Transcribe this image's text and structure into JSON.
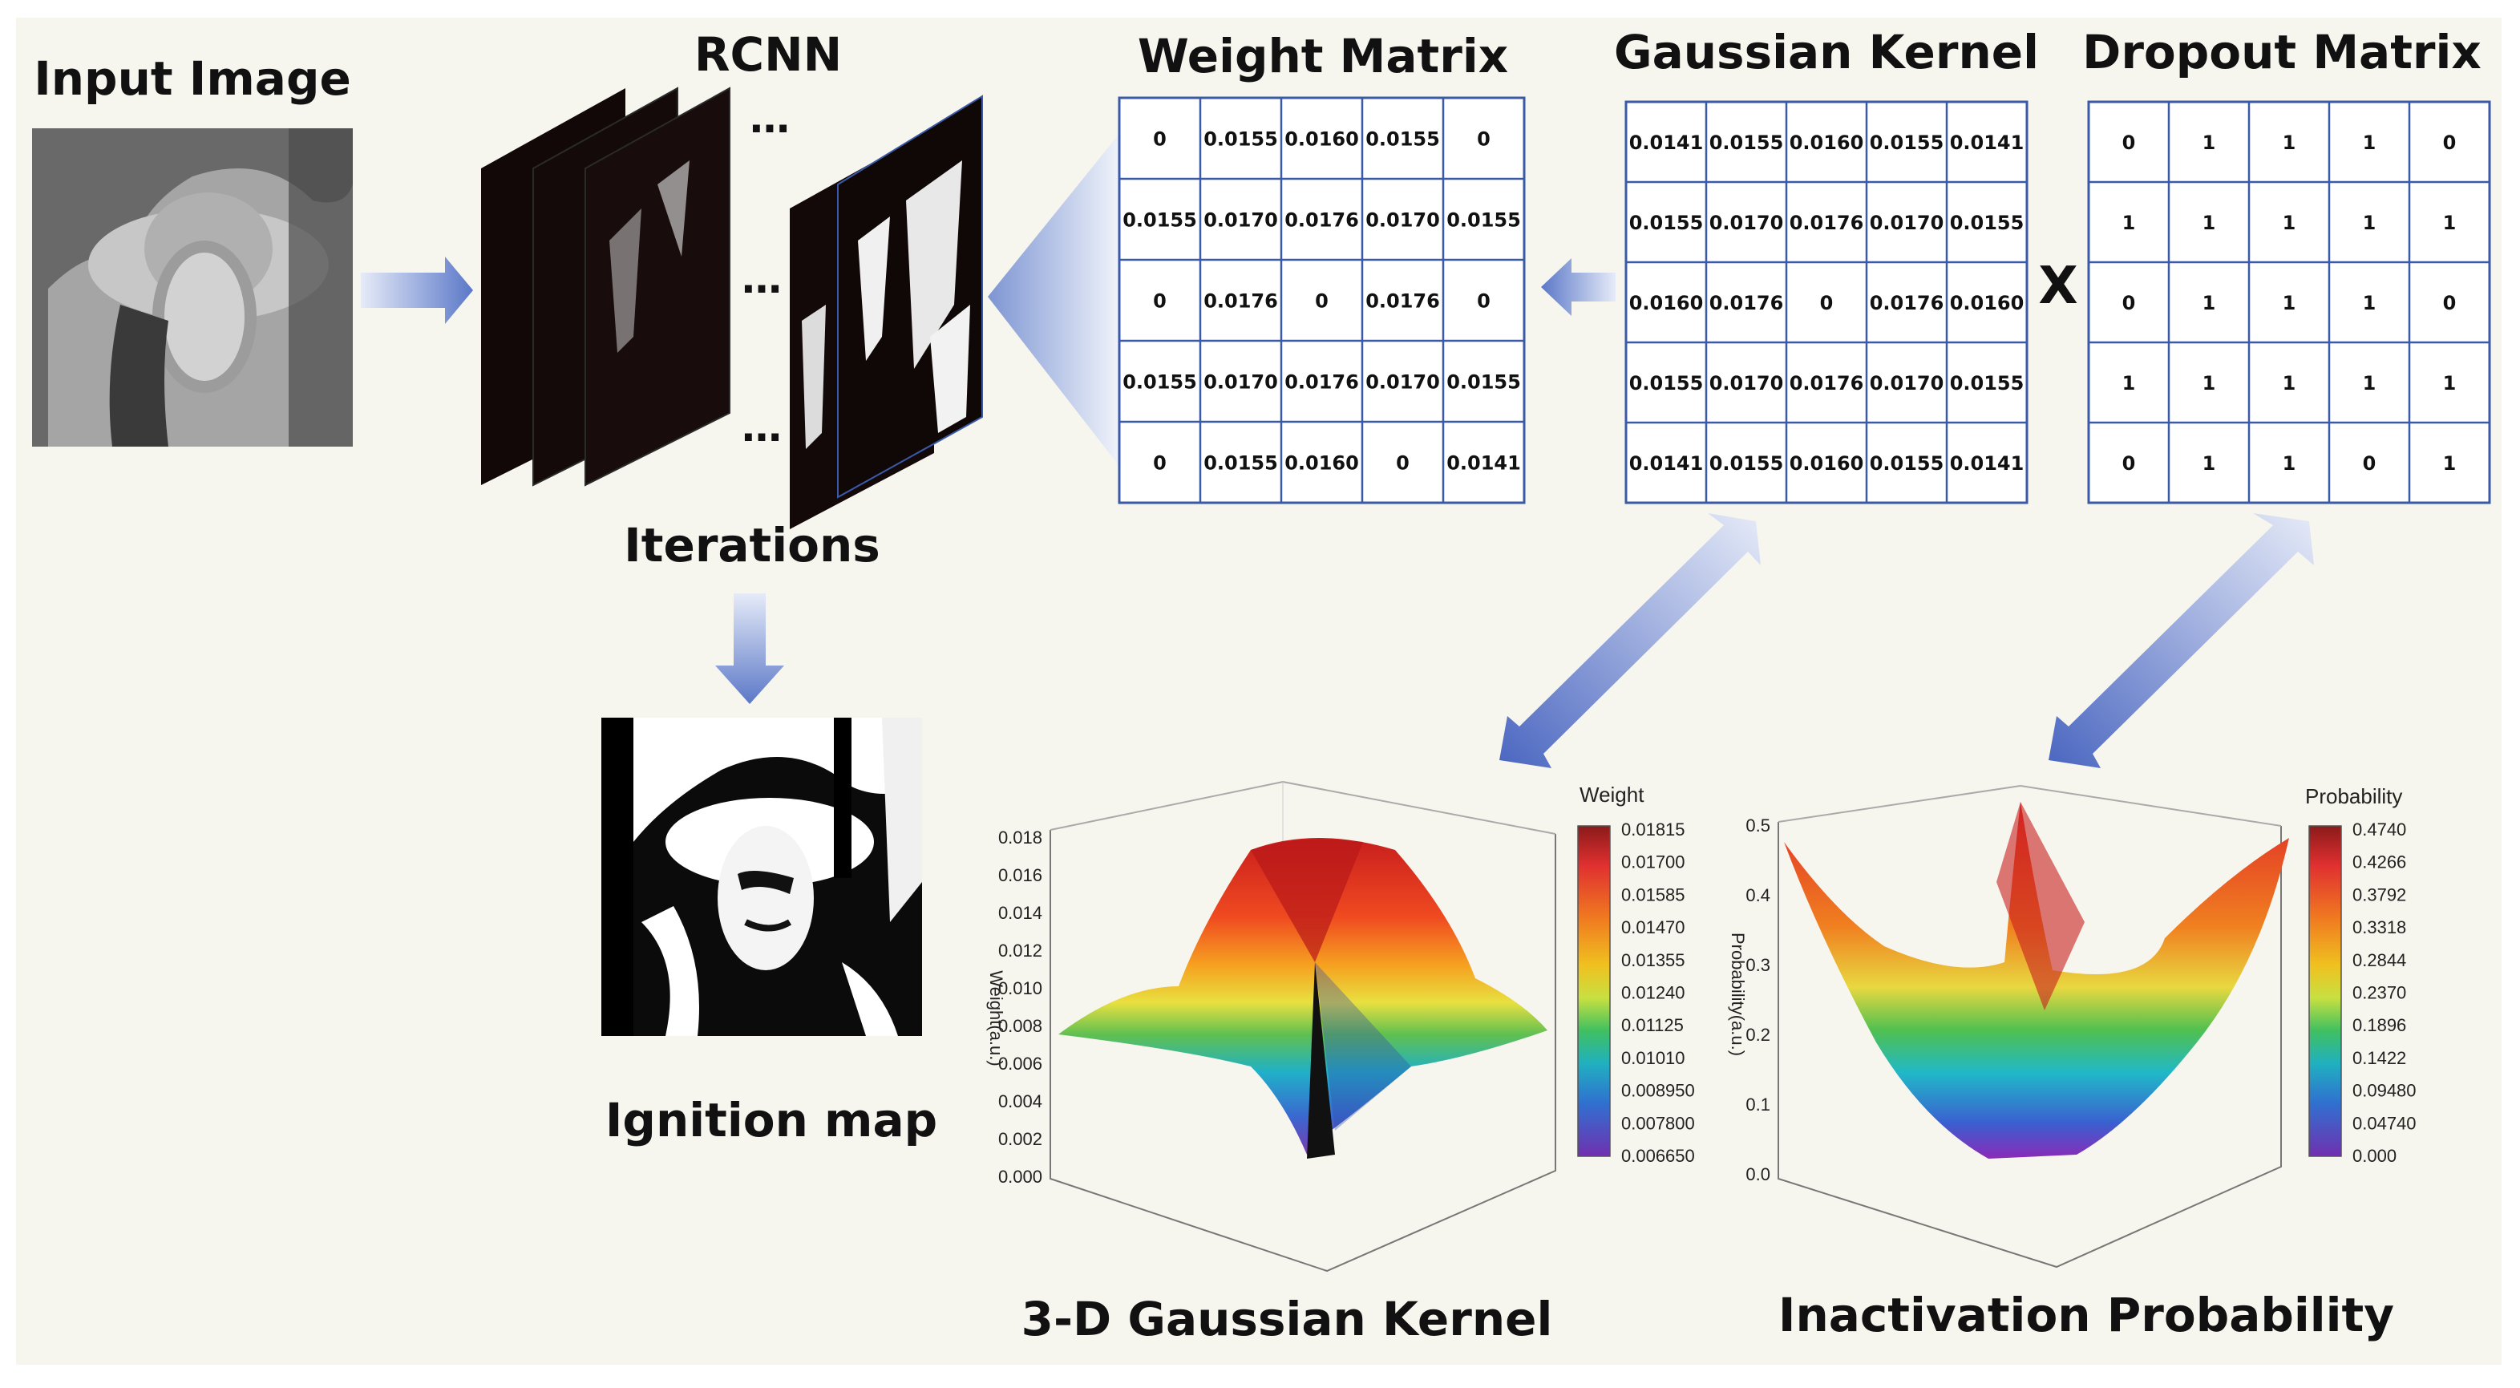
{
  "labels": {
    "input_image": "Input Image",
    "rcnn": "RCNN",
    "iterations": "Iterations",
    "ignition_map": "Ignition map",
    "weight_matrix": "Weight Matrix",
    "gaussian_kernel": "Gaussian Kernel",
    "dropout_matrix": "Dropout Matrix",
    "multiply": "X",
    "kernel_3d": "3-D Gaussian Kernel",
    "inactivation": "Inactivation Probability",
    "ellipsis": "…"
  },
  "matrices": {
    "weight": [
      [
        "0",
        "0.0155",
        "0.0160",
        "0.0155",
        "0"
      ],
      [
        "0.0155",
        "0.0170",
        "0.0176",
        "0.0170",
        "0.0155"
      ],
      [
        "0",
        "0.0176",
        "0",
        "0.0176",
        "0"
      ],
      [
        "0.0155",
        "0.0170",
        "0.0176",
        "0.0170",
        "0.0155"
      ],
      [
        "0",
        "0.0155",
        "0.0160",
        "0",
        "0.0141"
      ]
    ],
    "gaussian": [
      [
        "0.0141",
        "0.0155",
        "0.0160",
        "0.0155",
        "0.0141"
      ],
      [
        "0.0155",
        "0.0170",
        "0.0176",
        "0.0170",
        "0.0155"
      ],
      [
        "0.0160",
        "0.0176",
        "0",
        "0.0176",
        "0.0160"
      ],
      [
        "0.0155",
        "0.0170",
        "0.0176",
        "0.0170",
        "0.0155"
      ],
      [
        "0.0141",
        "0.0155",
        "0.0160",
        "0.0155",
        "0.0141"
      ]
    ],
    "dropout": [
      [
        "0",
        "1",
        "1",
        "1",
        "0"
      ],
      [
        "1",
        "1",
        "1",
        "1",
        "1"
      ],
      [
        "0",
        "1",
        "1",
        "1",
        "0"
      ],
      [
        "1",
        "1",
        "1",
        "1",
        "1"
      ],
      [
        "0",
        "1",
        "1",
        "0",
        "1"
      ]
    ]
  },
  "colors": {
    "grid_line": "#3a5aa8",
    "arrow": "#5b78c8",
    "arrow_light": "#dfe5f5",
    "panel_bg": "#f7f6ee",
    "colormap": [
      "#8b1a1a",
      "#e03030",
      "#f07a20",
      "#f0c020",
      "#c8e040",
      "#40c060",
      "#20b0c0",
      "#3070d0",
      "#7030b0"
    ]
  },
  "chart_data": [
    {
      "type": "surface",
      "title": "3-D Gaussian Kernel",
      "ylabel": "Weight(a.u.)",
      "zticks": [
        "0.018",
        "0.016",
        "0.014",
        "0.012",
        "0.010",
        "0.008",
        "0.006",
        "0.004",
        "0.002",
        "0.000"
      ],
      "colorbar_title": "Weight",
      "colorbar_ticks": [
        "0.01815",
        "0.01700",
        "0.01585",
        "0.01470",
        "0.01355",
        "0.01240",
        "0.01125",
        "0.01010",
        "0.008950",
        "0.007800",
        "0.006650"
      ]
    },
    {
      "type": "surface",
      "title": "Inactivation Probability",
      "ylabel": "Probability(a.u.)",
      "zticks": [
        "0.5",
        "0.4",
        "0.3",
        "0.2",
        "0.1",
        "0.0"
      ],
      "colorbar_title": "Probability",
      "colorbar_ticks": [
        "0.4740",
        "0.4266",
        "0.3792",
        "0.3318",
        "0.2844",
        "0.2370",
        "0.1896",
        "0.1422",
        "0.09480",
        "0.04740",
        "0.000"
      ]
    }
  ]
}
